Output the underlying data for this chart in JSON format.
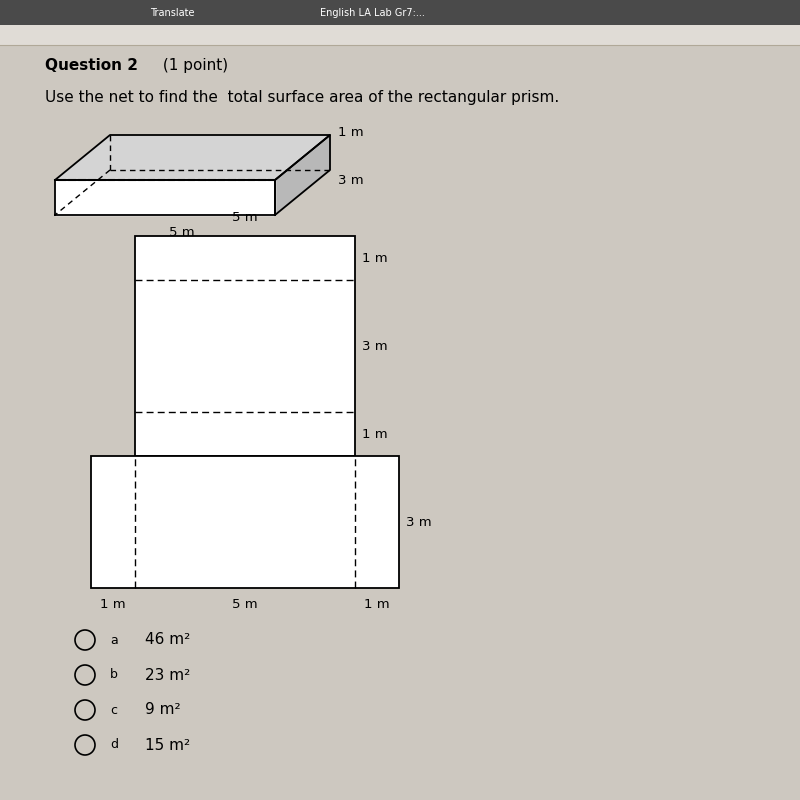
{
  "bg_color": "#cdc8c0",
  "title_bold": "Question 2",
  "title_normal": " (1 point)",
  "subtitle": "Use the net to find the  total surface area of the rectangular prism.",
  "choices": [
    {
      "letter": "a",
      "value": "46 m²"
    },
    {
      "letter": "b",
      "value": "23 m²"
    },
    {
      "letter": "c",
      "value": "9 m²"
    },
    {
      "letter": "d",
      "value": "15 m²"
    }
  ],
  "line_color": "#000000",
  "face_color": "#ffffff",
  "top_face_color": "#d4d4d4",
  "right_face_color": "#b8b8b8",
  "toolbar_color": "#3c3c3c",
  "browser_bar_color": "#e8e4de"
}
